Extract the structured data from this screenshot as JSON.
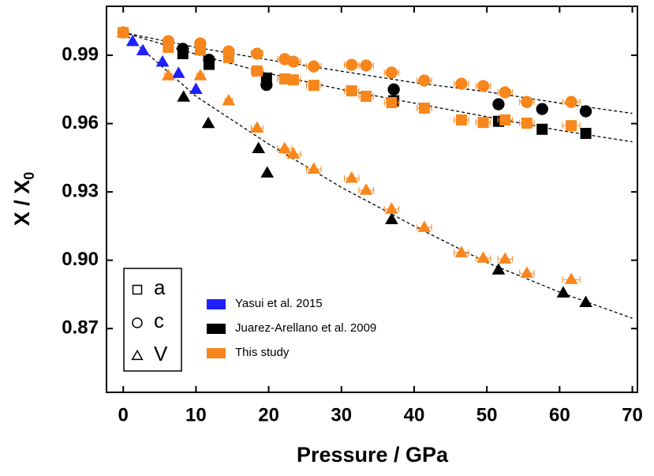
{
  "chart_data": {
    "type": "scatter",
    "x_label": "Pressure  /  GPa",
    "y_label": "X / X",
    "y_label_sub": "0",
    "xlim": [
      -2.3,
      70.7
    ],
    "ylim": [
      0.842,
      1.0115
    ],
    "xticks": [
      0,
      10,
      20,
      30,
      40,
      50,
      60,
      70
    ],
    "yticks": [
      0.87,
      {
        "value": 0.9,
        "label": "0.90"
      },
      0.93,
      0.96,
      0.99
    ],
    "datasets": [
      {
        "name": "Yasui et al. 2015",
        "color": "#1f1fff"
      },
      {
        "name": "Juarez-Arellano et al. 2009",
        "color": "#000000"
      },
      {
        "name": "This study",
        "color": "#f7861c"
      }
    ],
    "markers": [
      {
        "label": "a",
        "shape": "square"
      },
      {
        "label": "c",
        "shape": "circle"
      },
      {
        "label": "V",
        "shape": "triangle"
      }
    ],
    "series": [
      {
        "dataset": 0,
        "marker": 2,
        "x": [
          0,
          1.3,
          2.7,
          5.4,
          7.6,
          10
        ],
        "y": [
          1.0,
          0.996,
          0.992,
          0.987,
          0.982,
          0.975
        ]
      },
      {
        "dataset": 1,
        "marker": 0,
        "x": [
          8.2,
          11.8,
          19.7,
          37.2,
          51.6,
          57.6,
          63.6
        ],
        "y": [
          0.9907,
          0.986,
          0.98,
          0.97,
          0.961,
          0.9575,
          0.9557
        ]
      },
      {
        "dataset": 1,
        "marker": 1,
        "x": [
          8.2,
          11.8,
          19.7,
          37.2,
          51.6,
          57.6,
          63.6
        ],
        "y": [
          0.9928,
          0.988,
          0.977,
          0.975,
          0.9685,
          0.9664,
          0.9654
        ]
      },
      {
        "dataset": 1,
        "marker": 2,
        "x": [
          8.3,
          11.7,
          18.6,
          19.8,
          36.9,
          51.6,
          60.5,
          63.6
        ],
        "y": [
          0.9716,
          0.96,
          0.949,
          0.9383,
          0.9178,
          0.8957,
          0.8856,
          0.8814
        ]
      },
      {
        "dataset": 2,
        "marker": 0,
        "x": [
          0,
          6.2,
          10.6,
          14.5,
          18.4,
          22.2,
          23.4,
          26.2,
          31.4,
          33.4,
          36.9,
          41.4,
          46.5,
          49.5,
          52.5,
          55.5,
          61.6
        ],
        "y": [
          1.0,
          0.9935,
          0.9924,
          0.989,
          0.9831,
          0.9796,
          0.9792,
          0.9768,
          0.9744,
          0.972,
          0.9692,
          0.9668,
          0.9616,
          0.9605,
          0.9616,
          0.9602,
          0.9591
        ],
        "xerr": [
          0,
          0.5,
          0.5,
          0.5,
          0.8,
          1,
          1,
          1,
          1,
          1,
          1,
          1,
          1,
          1,
          1,
          1,
          1.2
        ]
      },
      {
        "dataset": 2,
        "marker": 1,
        "x": [
          0,
          6.2,
          10.6,
          14.5,
          18.4,
          22.2,
          23.4,
          26.2,
          31.4,
          33.4,
          36.9,
          41.4,
          46.5,
          49.5,
          52.5,
          55.5,
          61.6
        ],
        "y": [
          1.0,
          0.9962,
          0.9952,
          0.9917,
          0.9907,
          0.9883,
          0.9872,
          0.9851,
          0.9858,
          0.9855,
          0.9824,
          0.9789,
          0.9775,
          0.9765,
          0.9737,
          0.9695,
          0.9695
        ],
        "xerr": [
          0,
          0.5,
          0.5,
          0.5,
          0.8,
          1,
          1,
          1,
          1,
          1,
          1,
          1,
          1,
          1,
          1,
          1,
          1.2
        ]
      },
      {
        "dataset": 2,
        "marker": 2,
        "x": [
          0,
          6.2,
          10.6,
          14.5,
          18.4,
          22.2,
          23.4,
          26.2,
          31.4,
          33.4,
          36.9,
          41.4,
          46.5,
          49.5,
          52.5,
          55.5,
          61.6
        ],
        "y": [
          1.0,
          0.981,
          0.981,
          0.97,
          0.958,
          0.949,
          0.9466,
          0.94,
          0.936,
          0.9307,
          0.9224,
          0.9144,
          0.9033,
          0.9009,
          0.9005,
          0.8943,
          0.8915
        ],
        "xerr": [
          0,
          0.5,
          0.5,
          0.5,
          0.8,
          1,
          1,
          1,
          1,
          1,
          1,
          1,
          1,
          1,
          1,
          1,
          1.2
        ]
      }
    ],
    "fits": [
      {
        "x": [
          0,
          10,
          20,
          30,
          40,
          50,
          60,
          70
        ],
        "y": [
          1.0,
          0.9935,
          0.988,
          0.983,
          0.978,
          0.974,
          0.969,
          0.9645
        ]
      },
      {
        "x": [
          0,
          10,
          20,
          30,
          40,
          50,
          60,
          70
        ],
        "y": [
          1.0,
          0.9905,
          0.982,
          0.975,
          0.969,
          0.963,
          0.957,
          0.952
        ]
      },
      {
        "x": [
          0,
          10,
          20,
          30,
          40,
          50,
          60,
          70
        ],
        "y": [
          1.0,
          0.972,
          0.951,
          0.932,
          0.915,
          0.899,
          0.886,
          0.8745
        ]
      }
    ]
  }
}
